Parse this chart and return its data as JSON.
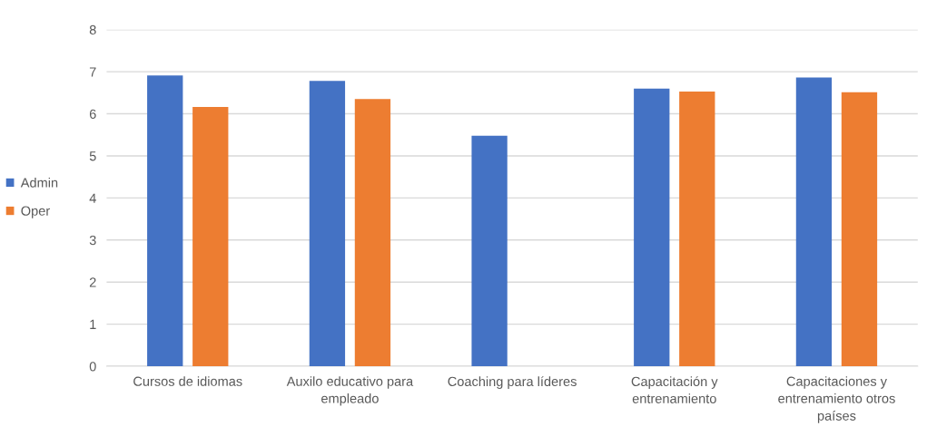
{
  "chart_data": {
    "type": "bar",
    "categories": [
      "Cursos de idiomas",
      "Auxilo educativo para empleado",
      "Coaching para líderes",
      "Capacitación y entrenamiento",
      "Capacitaciones y entrenamiento otros países"
    ],
    "series": [
      {
        "name": "Admin",
        "color": "#4472c4",
        "values": [
          6.91,
          6.78,
          5.48,
          6.6,
          6.86
        ]
      },
      {
        "name": "Oper",
        "color": "#ed7d31",
        "values": [
          6.16,
          6.35,
          null,
          6.53,
          6.51
        ]
      }
    ],
    "ylim": [
      0,
      8
    ],
    "yticks": [
      0,
      1,
      2,
      3,
      4,
      5,
      6,
      7,
      8
    ],
    "grid": "y",
    "legend": "left"
  }
}
